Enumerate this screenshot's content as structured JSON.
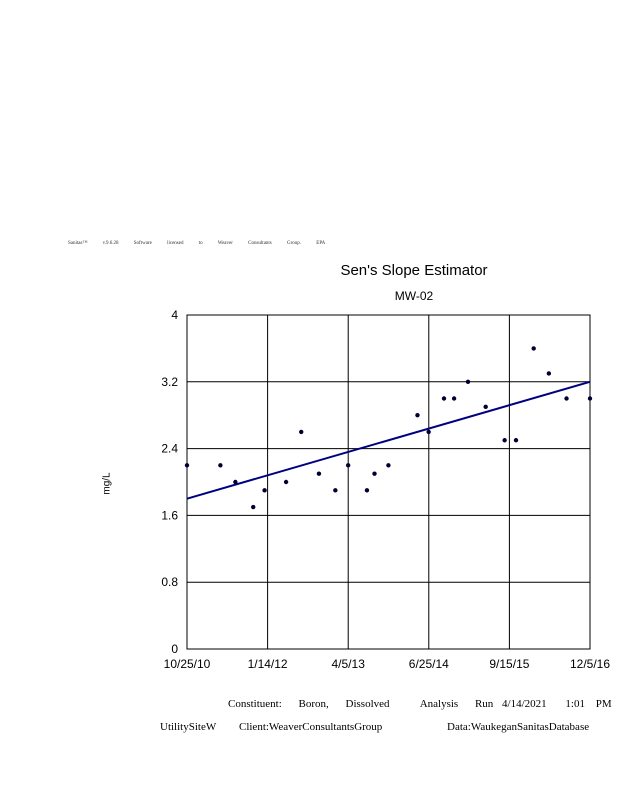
{
  "license_text": "Sanitas™ v.9.6.28 Software licensed to Weaver Consultants Group. EPA",
  "chart_data": {
    "type": "scatter",
    "title": "Sen's Slope Estimator",
    "subtitle": "MW-02",
    "ylabel": "mg/L",
    "xlabel": "",
    "x_ticks": [
      "10/25/10",
      "1/14/12",
      "4/5/13",
      "6/25/14",
      "9/15/15",
      "12/5/16"
    ],
    "xlim": [
      "2010-10-25",
      "2016-12-05"
    ],
    "y_ticks": [
      "0",
      "0.8",
      "1.6",
      "2.4",
      "3.2",
      "4"
    ],
    "ylim": [
      0,
      4
    ],
    "grid": true,
    "points": [
      {
        "x": "2010-10-25",
        "y": 2.2
      },
      {
        "x": "2011-04-28",
        "y": 2.2
      },
      {
        "x": "2011-07-20",
        "y": 2.0
      },
      {
        "x": "2011-10-27",
        "y": 1.7
      },
      {
        "x": "2011-12-29",
        "y": 1.9
      },
      {
        "x": "2012-04-26",
        "y": 2.0
      },
      {
        "x": "2012-07-19",
        "y": 2.6
      },
      {
        "x": "2012-10-25",
        "y": 2.1
      },
      {
        "x": "2013-01-24",
        "y": 1.9
      },
      {
        "x": "2013-04-05",
        "y": 2.2
      },
      {
        "x": "2013-07-18",
        "y": 1.9
      },
      {
        "x": "2013-08-29",
        "y": 2.1
      },
      {
        "x": "2013-11-14",
        "y": 2.2
      },
      {
        "x": "2014-04-24",
        "y": 2.8
      },
      {
        "x": "2014-06-25",
        "y": 2.6
      },
      {
        "x": "2014-09-18",
        "y": 3.0
      },
      {
        "x": "2014-11-13",
        "y": 3.0
      },
      {
        "x": "2015-01-29",
        "y": 3.2
      },
      {
        "x": "2015-05-07",
        "y": 2.9
      },
      {
        "x": "2015-08-20",
        "y": 2.5
      },
      {
        "x": "2015-10-22",
        "y": 2.5
      },
      {
        "x": "2016-01-28",
        "y": 3.6
      },
      {
        "x": "2016-04-21",
        "y": 3.3
      },
      {
        "x": "2016-07-28",
        "y": 3.0
      },
      {
        "x": "2016-12-05",
        "y": 3.0
      }
    ],
    "trend_line": {
      "color": "#000080",
      "start": {
        "x": "2010-10-25",
        "y": 1.8
      },
      "end": {
        "x": "2016-12-05",
        "y": 3.2
      }
    },
    "point_color": "#000033"
  },
  "footer": {
    "constituent_label": "Constituent:",
    "constituent_value_1": "Boron,",
    "constituent_value_2": "Dissolved",
    "analysis_label": "Analysis",
    "run_label": "Run",
    "run_date": "4/14/2021",
    "run_time": "1:01",
    "run_ampm": "PM",
    "site": "UtilitySiteW",
    "client": "Client:WeaverConsultantsGroup",
    "data_source": "Data:WaukeganSanitasDatabase"
  }
}
